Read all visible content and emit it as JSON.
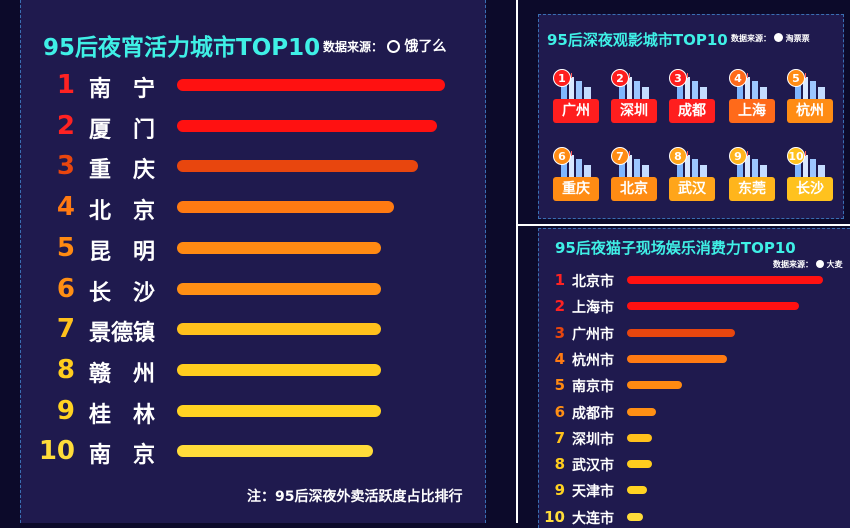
{
  "left": {
    "title": "95后夜宵活力城市TOP10",
    "source_label": "数据来源：",
    "source_brand": "饿了么",
    "note": "注：95后深夜外卖活跃度占比排行"
  },
  "topright": {
    "title": "95后深夜观影城市TOP10",
    "source_label": "数据来源：",
    "source_brand": "淘票票"
  },
  "bottomright": {
    "title": "95后夜猫子现场娱乐消费力TOP10",
    "source_label": "数据来源：",
    "source_brand": "大麦"
  },
  "chart_data": [
    {
      "type": "bar",
      "orientation": "horizontal",
      "title": "95后夜宵活力城市TOP10",
      "categories": [
        "南　宁",
        "厦　门",
        "重　庆",
        "北　京",
        "昆　明",
        "长　沙",
        "景德镇",
        "赣　州",
        "桂　林",
        "南　京"
      ],
      "ranks": [
        "1",
        "2",
        "3",
        "4",
        "5",
        "6",
        "7",
        "8",
        "9",
        "10"
      ],
      "values": [
        100,
        97,
        90,
        81,
        76,
        76,
        76,
        76,
        76,
        73
      ],
      "xlim": [
        0,
        100
      ],
      "colors": [
        "#ff1111",
        "#ff1111",
        "#e8460e",
        "#ff7a12",
        "#ff8a12",
        "#ff8f14",
        "#ffc11c",
        "#ffcd1e",
        "#ffd322",
        "#ffdc3a"
      ],
      "rank_colors": [
        "#ff2222",
        "#ff2222",
        "#e8460e",
        "#ff7a12",
        "#ff8a12",
        "#ff8f14",
        "#ffc11c",
        "#ffcd1e",
        "#ffd322",
        "#ffdc3a"
      ]
    },
    {
      "type": "table",
      "title": "95后深夜观影城市TOP10",
      "ranks": [
        "1",
        "2",
        "3",
        "4",
        "5",
        "6",
        "7",
        "8",
        "9",
        "10"
      ],
      "cities": [
        "广州",
        "深圳",
        "成都",
        "上海",
        "杭州",
        "重庆",
        "北京",
        "武汉",
        "东莞",
        "长沙"
      ],
      "label_colors": [
        "#ff1e1e",
        "#ff1e1e",
        "#ff1e1e",
        "#ff6a1a",
        "#ff8c14",
        "#ff8c14",
        "#ff8c14",
        "#ffa51a",
        "#ffb51c",
        "#ffc21e"
      ]
    },
    {
      "type": "bar",
      "orientation": "horizontal",
      "title": "95后夜猫子现场娱乐消费力TOP10",
      "categories": [
        "北京市",
        "上海市",
        "广州市",
        "杭州市",
        "南京市",
        "成都市",
        "深圳市",
        "武汉市",
        "天津市",
        "大连市"
      ],
      "ranks": [
        "1",
        "2",
        "3",
        "4",
        "5",
        "6",
        "7",
        "8",
        "9",
        "10"
      ],
      "values": [
        100,
        88,
        55,
        51,
        28,
        15,
        13,
        13,
        10,
        8
      ],
      "xlim": [
        0,
        100
      ],
      "colors": [
        "#ff1111",
        "#ff1111",
        "#e8460e",
        "#ff7a12",
        "#ff8a12",
        "#ff8f14",
        "#ffc11c",
        "#ffcd1e",
        "#ffd322",
        "#ffdc3a"
      ],
      "rank_colors": [
        "#ff2222",
        "#ff2222",
        "#e8460e",
        "#ff7a12",
        "#ff8a12",
        "#ff8f14",
        "#ffc11c",
        "#ffcd1e",
        "#ffd322",
        "#ffdc3a"
      ]
    }
  ]
}
